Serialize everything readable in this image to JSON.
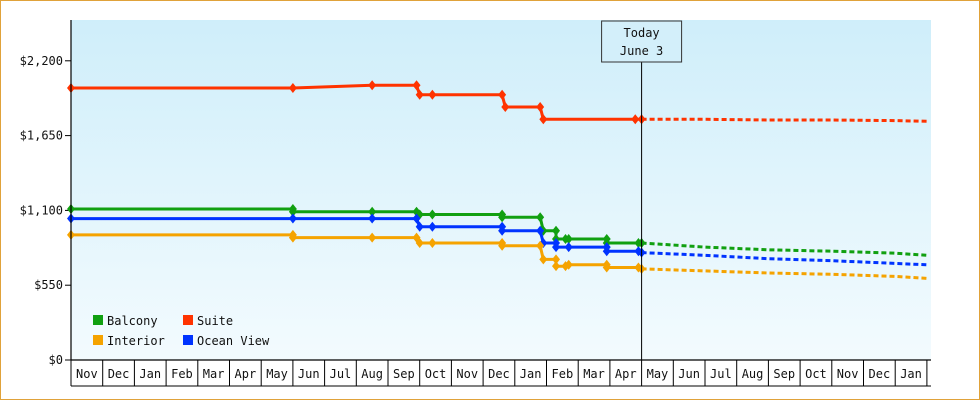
{
  "chart_data": {
    "type": "line",
    "y_axis": {
      "min": 0,
      "max": 2500,
      "ticks": [
        0,
        550,
        1100,
        1650,
        2200
      ],
      "tick_labels": [
        "$0",
        "$550",
        "$1,100",
        "$1,650",
        "$2,200"
      ]
    },
    "x_axis": {
      "month_labels": [
        "Nov",
        "Dec",
        "Jan",
        "Feb",
        "Mar",
        "Apr",
        "May",
        "Jun",
        "Jul",
        "Aug",
        "Sep",
        "Oct",
        "Nov",
        "Dec",
        "Jan",
        "Feb",
        "Mar",
        "Apr",
        "May",
        "Jun",
        "Jul",
        "Aug",
        "Sep",
        "Oct",
        "Nov",
        "Dec",
        "Jan"
      ]
    },
    "today_marker": {
      "line1": "Today",
      "line2": "June 3",
      "month_position": 18.0
    },
    "grid": false,
    "legend_placement": "bottom-left",
    "series": [
      {
        "name": "Suite",
        "color": "#ff3300",
        "points": [
          [
            0,
            2000
          ],
          [
            7.0,
            2000
          ],
          [
            9.5,
            2020
          ],
          [
            10.9,
            2020
          ],
          [
            11.0,
            1950
          ],
          [
            11.4,
            1950
          ],
          [
            13.6,
            1950
          ],
          [
            13.7,
            1860
          ],
          [
            14.8,
            1860
          ],
          [
            14.9,
            1770
          ],
          [
            17.8,
            1770
          ],
          [
            18.0,
            1770
          ]
        ],
        "forecast": [
          [
            18.0,
            1770
          ],
          [
            20,
            1770
          ],
          [
            22,
            1765
          ],
          [
            24,
            1765
          ],
          [
            26,
            1760
          ],
          [
            27,
            1755
          ]
        ]
      },
      {
        "name": "Balcony",
        "color": "#11a011",
        "points": [
          [
            0,
            1110
          ],
          [
            7.0,
            1110
          ],
          [
            7.0,
            1090
          ],
          [
            9.5,
            1090
          ],
          [
            10.9,
            1090
          ],
          [
            11.0,
            1070
          ],
          [
            11.4,
            1070
          ],
          [
            13.6,
            1070
          ],
          [
            13.6,
            1050
          ],
          [
            14.8,
            1050
          ],
          [
            14.9,
            950
          ],
          [
            15.3,
            950
          ],
          [
            15.3,
            890
          ],
          [
            15.6,
            890
          ],
          [
            15.7,
            890
          ],
          [
            16.9,
            890
          ],
          [
            16.9,
            860
          ],
          [
            17.9,
            860
          ],
          [
            18.0,
            860
          ]
        ],
        "forecast": [
          [
            18.0,
            860
          ],
          [
            20,
            830
          ],
          [
            22,
            810
          ],
          [
            24,
            800
          ],
          [
            26,
            785
          ],
          [
            27,
            770
          ]
        ]
      },
      {
        "name": "Ocean View",
        "color": "#0033ff",
        "points": [
          [
            0,
            1040
          ],
          [
            7.0,
            1040
          ],
          [
            9.5,
            1040
          ],
          [
            10.9,
            1040
          ],
          [
            11.0,
            980
          ],
          [
            11.4,
            980
          ],
          [
            13.6,
            980
          ],
          [
            13.6,
            950
          ],
          [
            14.8,
            950
          ],
          [
            14.9,
            860
          ],
          [
            15.3,
            860
          ],
          [
            15.3,
            830
          ],
          [
            15.7,
            830
          ],
          [
            16.9,
            830
          ],
          [
            16.9,
            800
          ],
          [
            17.9,
            800
          ],
          [
            18.0,
            790
          ]
        ],
        "forecast": [
          [
            18.0,
            790
          ],
          [
            20,
            770
          ],
          [
            22,
            745
          ],
          [
            24,
            730
          ],
          [
            26,
            710
          ],
          [
            27,
            700
          ]
        ]
      },
      {
        "name": "Interior",
        "color": "#f5a300",
        "points": [
          [
            0,
            920
          ],
          [
            7.0,
            920
          ],
          [
            7.0,
            900
          ],
          [
            9.5,
            900
          ],
          [
            10.9,
            900
          ],
          [
            11.0,
            860
          ],
          [
            11.4,
            860
          ],
          [
            13.6,
            860
          ],
          [
            13.6,
            840
          ],
          [
            14.8,
            840
          ],
          [
            14.9,
            740
          ],
          [
            15.3,
            740
          ],
          [
            15.3,
            690
          ],
          [
            15.6,
            690
          ],
          [
            15.7,
            700
          ],
          [
            16.9,
            700
          ],
          [
            16.9,
            680
          ],
          [
            17.9,
            680
          ],
          [
            18.0,
            670
          ]
        ],
        "forecast": [
          [
            18.0,
            670
          ],
          [
            20,
            655
          ],
          [
            22,
            640
          ],
          [
            24,
            630
          ],
          [
            26,
            615
          ],
          [
            27,
            600
          ]
        ]
      }
    ],
    "legend": [
      {
        "name": "Balcony",
        "color": "#11a011"
      },
      {
        "name": "Suite",
        "color": "#ff3300"
      },
      {
        "name": "Interior",
        "color": "#f5a300"
      },
      {
        "name": "Ocean View",
        "color": "#0033ff"
      }
    ]
  }
}
